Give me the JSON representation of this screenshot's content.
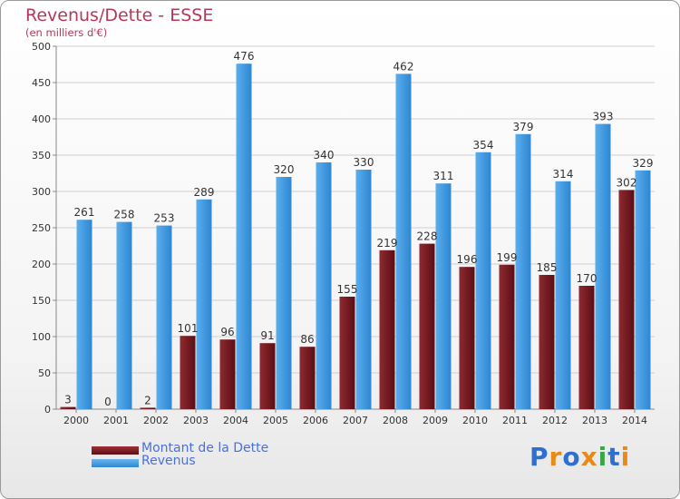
{
  "chart_data": {
    "type": "bar",
    "title": "Revenus/Dette - ESSE",
    "subtitle": "(en milliers d'€)",
    "xlabel": "",
    "ylabel": "",
    "ylim": [
      0,
      500
    ],
    "yticks": [
      0,
      50,
      100,
      150,
      200,
      250,
      300,
      350,
      400,
      450,
      500
    ],
    "grid": true,
    "legend_position": "bottom-left",
    "categories": [
      "2000",
      "2001",
      "2002",
      "2003",
      "2004",
      "2005",
      "2006",
      "2007",
      "2008",
      "2009",
      "2010",
      "2011",
      "2012",
      "2013",
      "2014"
    ],
    "series": [
      {
        "name": "Montant de la Dette",
        "color": "#7a1c22",
        "values": [
          3,
          0,
          2,
          101,
          96,
          91,
          86,
          155,
          219,
          228,
          196,
          199,
          185,
          170,
          302
        ]
      },
      {
        "name": "Revenus",
        "color": "#3f9ae0",
        "values": [
          261,
          258,
          253,
          289,
          476,
          320,
          340,
          330,
          462,
          311,
          354,
          379,
          314,
          393,
          329
        ]
      }
    ]
  },
  "logo": {
    "text": "Proxiti",
    "letters": [
      {
        "ch": "P",
        "color": "#2f6fd0"
      },
      {
        "ch": "r",
        "color": "#e88a1a"
      },
      {
        "ch": "o",
        "color": "#2f6fd0"
      },
      {
        "ch": "x",
        "color": "#e88a1a"
      },
      {
        "ch": "i",
        "color": "#3aa64a"
      },
      {
        "ch": "t",
        "color": "#2f6fd0"
      },
      {
        "ch": "i",
        "color": "#e88a1a"
      }
    ]
  }
}
